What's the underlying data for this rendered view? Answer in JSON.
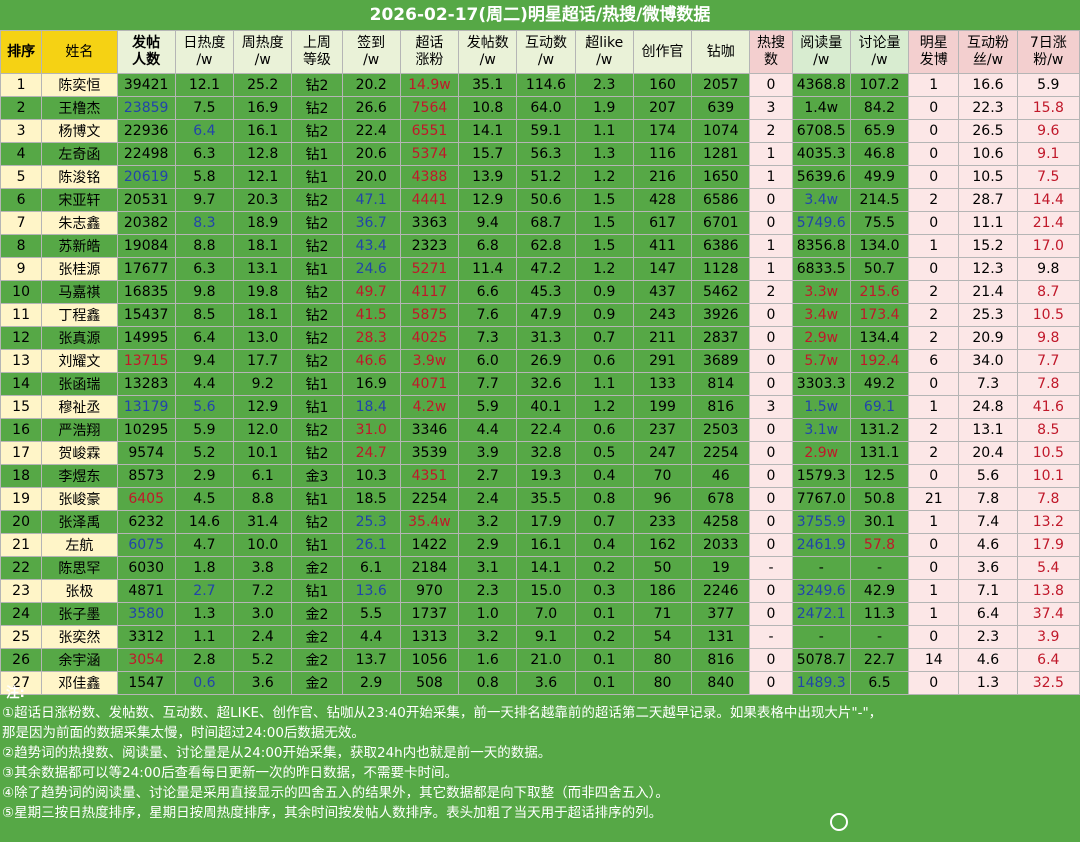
{
  "title": "2026-02-17(周二)明星超话/热搜/微博数据",
  "headers": [
    {
      "l1": "排序",
      "l2": "",
      "bold": true,
      "bg": "hy"
    },
    {
      "l1": "姓名",
      "l2": "",
      "bold": false,
      "bg": "hy"
    },
    {
      "l1": "发帖",
      "l2": "人数",
      "bold": true,
      "bg": "hl"
    },
    {
      "l1": "日热度",
      "l2": "/w",
      "bold": false,
      "bg": "hl"
    },
    {
      "l1": "周热度",
      "l2": "/w",
      "bold": false,
      "bg": "hl"
    },
    {
      "l1": "上周",
      "l2": "等级",
      "bold": false,
      "bg": "hl"
    },
    {
      "l1": "签到",
      "l2": "/w",
      "bold": false,
      "bg": "hl"
    },
    {
      "l1": "超话",
      "l2": "涨粉",
      "bold": false,
      "bg": "hl"
    },
    {
      "l1": "发帖数",
      "l2": "/w",
      "bold": false,
      "bg": "hl"
    },
    {
      "l1": "互动数",
      "l2": "/w",
      "bold": false,
      "bg": "hl"
    },
    {
      "l1": "超like",
      "l2": "/w",
      "bold": false,
      "bg": "hl"
    },
    {
      "l1": "创作官",
      "l2": "",
      "bold": false,
      "bg": "hl"
    },
    {
      "l1": "钻咖",
      "l2": "",
      "bold": false,
      "bg": "hl"
    },
    {
      "l1": "热搜",
      "l2": "数",
      "bold": false,
      "bg": "hp"
    },
    {
      "l1": "阅读量",
      "l2": "/w",
      "bold": false,
      "bg": "hg"
    },
    {
      "l1": "讨论量",
      "l2": "/w",
      "bold": false,
      "bg": "hg"
    },
    {
      "l1": "明星",
      "l2": "发博",
      "bold": false,
      "bg": "hp"
    },
    {
      "l1": "互动粉",
      "l2": "丝/w",
      "bold": false,
      "bg": "hp"
    },
    {
      "l1": "7日涨",
      "l2": "粉/w",
      "bold": false,
      "bg": "hp"
    }
  ],
  "rows": [
    [
      "1",
      "陈奕恒",
      "39421",
      "12.1",
      "25.2",
      "钻2",
      "20.2",
      "14.9w",
      "35.1",
      "114.6",
      "2.3",
      "160",
      "2057",
      "0",
      "4368.8",
      "107.2",
      "1",
      "16.6",
      "5.9"
    ],
    [
      "2",
      "王橹杰",
      "23859",
      "7.5",
      "16.9",
      "钻2",
      "26.6",
      "7564",
      "10.8",
      "64.0",
      "1.9",
      "207",
      "639",
      "3",
      "1.4w",
      "84.2",
      "0",
      "22.3",
      "15.8"
    ],
    [
      "3",
      "杨博文",
      "22936",
      "6.4",
      "16.1",
      "钻2",
      "22.4",
      "6551",
      "14.1",
      "59.1",
      "1.1",
      "174",
      "1074",
      "2",
      "6708.5",
      "65.9",
      "0",
      "26.5",
      "9.6"
    ],
    [
      "4",
      "左奇函",
      "22498",
      "6.3",
      "12.8",
      "钻1",
      "20.6",
      "5374",
      "15.7",
      "56.3",
      "1.3",
      "116",
      "1281",
      "1",
      "4035.3",
      "46.8",
      "0",
      "10.6",
      "9.1"
    ],
    [
      "5",
      "陈浚铭",
      "20619",
      "5.8",
      "12.1",
      "钻1",
      "20.0",
      "4388",
      "13.9",
      "51.2",
      "1.2",
      "216",
      "1650",
      "1",
      "5639.6",
      "49.9",
      "0",
      "10.5",
      "7.5"
    ],
    [
      "6",
      "宋亚轩",
      "20531",
      "9.7",
      "20.3",
      "钻2",
      "47.1",
      "4441",
      "12.9",
      "50.6",
      "1.5",
      "428",
      "6586",
      "0",
      "3.4w",
      "214.5",
      "2",
      "28.7",
      "14.4"
    ],
    [
      "7",
      "朱志鑫",
      "20382",
      "8.3",
      "18.9",
      "钻2",
      "36.7",
      "3363",
      "9.4",
      "68.7",
      "1.5",
      "617",
      "6701",
      "0",
      "5749.6",
      "75.5",
      "0",
      "11.1",
      "21.4"
    ],
    [
      "8",
      "苏新皓",
      "19084",
      "8.8",
      "18.1",
      "钻2",
      "43.4",
      "2323",
      "6.8",
      "62.8",
      "1.5",
      "411",
      "6386",
      "1",
      "8356.8",
      "134.0",
      "1",
      "15.2",
      "17.0"
    ],
    [
      "9",
      "张桂源",
      "17677",
      "6.3",
      "13.1",
      "钻1",
      "24.6",
      "5271",
      "11.4",
      "47.2",
      "1.2",
      "147",
      "1128",
      "1",
      "6833.5",
      "50.7",
      "0",
      "12.3",
      "9.8"
    ],
    [
      "10",
      "马嘉祺",
      "16835",
      "9.8",
      "19.8",
      "钻2",
      "49.7",
      "4117",
      "6.6",
      "45.3",
      "0.9",
      "437",
      "5462",
      "2",
      "3.3w",
      "215.6",
      "2",
      "21.4",
      "8.7"
    ],
    [
      "11",
      "丁程鑫",
      "15437",
      "8.5",
      "18.1",
      "钻2",
      "41.5",
      "5875",
      "7.6",
      "47.9",
      "0.9",
      "243",
      "3926",
      "0",
      "3.4w",
      "173.4",
      "2",
      "25.3",
      "10.5"
    ],
    [
      "12",
      "张真源",
      "14995",
      "6.4",
      "13.0",
      "钻2",
      "28.3",
      "4025",
      "7.3",
      "31.3",
      "0.7",
      "211",
      "2837",
      "0",
      "2.9w",
      "134.4",
      "2",
      "20.9",
      "9.8"
    ],
    [
      "13",
      "刘耀文",
      "13715",
      "9.4",
      "17.7",
      "钻2",
      "46.6",
      "3.9w",
      "6.0",
      "26.9",
      "0.6",
      "291",
      "3689",
      "0",
      "5.7w",
      "192.4",
      "6",
      "34.0",
      "7.7"
    ],
    [
      "14",
      "张函瑞",
      "13283",
      "4.4",
      "9.2",
      "钻1",
      "16.9",
      "4071",
      "7.7",
      "32.6",
      "1.1",
      "133",
      "814",
      "0",
      "3303.3",
      "49.2",
      "0",
      "7.3",
      "7.8"
    ],
    [
      "15",
      "穆祉丞",
      "13179",
      "5.6",
      "12.9",
      "钻1",
      "18.4",
      "4.2w",
      "5.9",
      "40.1",
      "1.2",
      "199",
      "816",
      "3",
      "1.5w",
      "69.1",
      "1",
      "24.8",
      "41.6"
    ],
    [
      "16",
      "严浩翔",
      "10295",
      "5.9",
      "12.0",
      "钻2",
      "31.0",
      "3346",
      "4.4",
      "22.4",
      "0.6",
      "237",
      "2503",
      "0",
      "3.1w",
      "131.2",
      "2",
      "13.1",
      "8.5"
    ],
    [
      "17",
      "贺峻霖",
      "9574",
      "5.2",
      "10.1",
      "钻2",
      "24.7",
      "3539",
      "3.9",
      "32.8",
      "0.5",
      "247",
      "2254",
      "0",
      "2.9w",
      "131.1",
      "2",
      "20.4",
      "10.5"
    ],
    [
      "18",
      "李煜东",
      "8573",
      "2.9",
      "6.1",
      "金3",
      "10.3",
      "4351",
      "2.7",
      "19.3",
      "0.4",
      "70",
      "46",
      "0",
      "1579.3",
      "12.5",
      "0",
      "5.6",
      "10.1"
    ],
    [
      "19",
      "张峻豪",
      "6405",
      "4.5",
      "8.8",
      "钻1",
      "18.5",
      "2254",
      "2.4",
      "35.5",
      "0.8",
      "96",
      "678",
      "0",
      "7767.0",
      "50.8",
      "21",
      "7.8",
      "7.8"
    ],
    [
      "20",
      "张泽禹",
      "6232",
      "14.6",
      "31.4",
      "钻2",
      "25.3",
      "35.4w",
      "3.2",
      "17.9",
      "0.7",
      "233",
      "4258",
      "0",
      "3755.9",
      "30.1",
      "1",
      "7.4",
      "13.2"
    ],
    [
      "21",
      "左航",
      "6075",
      "4.7",
      "10.0",
      "钻1",
      "26.1",
      "1422",
      "2.9",
      "16.1",
      "0.4",
      "162",
      "2033",
      "0",
      "2461.9",
      "57.8",
      "0",
      "4.6",
      "17.9"
    ],
    [
      "22",
      "陈思罕",
      "6030",
      "1.8",
      "3.8",
      "金2",
      "6.1",
      "2184",
      "3.1",
      "14.1",
      "0.2",
      "50",
      "19",
      "-",
      "-",
      "-",
      "0",
      "3.6",
      "5.4"
    ],
    [
      "23",
      "张极",
      "4871",
      "2.7",
      "7.2",
      "钻1",
      "13.6",
      "970",
      "2.3",
      "15.0",
      "0.3",
      "186",
      "2246",
      "0",
      "3249.6",
      "42.9",
      "1",
      "7.1",
      "13.8"
    ],
    [
      "24",
      "张子墨",
      "3580",
      "1.3",
      "3.0",
      "金2",
      "5.5",
      "1737",
      "1.0",
      "7.0",
      "0.1",
      "71",
      "377",
      "0",
      "2472.1",
      "11.3",
      "1",
      "6.4",
      "37.4"
    ],
    [
      "25",
      "张奕然",
      "3312",
      "1.1",
      "2.4",
      "金2",
      "4.4",
      "1313",
      "3.2",
      "9.1",
      "0.2",
      "54",
      "131",
      "-",
      "-",
      "-",
      "0",
      "2.3",
      "3.9"
    ],
    [
      "26",
      "余宇涵",
      "3054",
      "2.8",
      "5.2",
      "金2",
      "13.7",
      "1056",
      "1.6",
      "21.0",
      "0.1",
      "80",
      "816",
      "0",
      "5078.7",
      "22.7",
      "14",
      "4.6",
      "6.4"
    ],
    [
      "27",
      "邓佳鑫",
      "1547",
      "0.6",
      "3.6",
      "金2",
      "2.9",
      "508",
      "0.8",
      "3.6",
      "0.1",
      "80",
      "840",
      "0",
      "1489.3",
      "6.5",
      "0",
      "1.3",
      "32.5"
    ]
  ],
  "notes": {
    "title": "注:",
    "lines": [
      "①超话日涨粉数、发帖数、互动数、超LIKE、创作官、钻咖从23:40开始采集，前一天排名越靠前的超话第二天越早记录。如果表格中出现大片\"-\"，",
      "那是因为前面的数据采集太慢，时间超过24:00后数据无效。",
      "②趋势词的热搜数、阅读量、讨论量是从24:00开始采集，获取24h内也就是前一天的数据。",
      "③其余数据都可以等24:00后查看每日更新一次的昨日数据，不需要卡时间。",
      "④除了趋势词的阅读量、讨论量是采用直接显示的四舍五入的结果外，其它数据都是向下取整（而非四舍五入）。",
      "⑤星期三按日热度排序，星期日按周热度排序，其余时间按发帖人数排序。表头加粗了当天用于超话排序的列。"
    ]
  },
  "colors": {
    "background": "#56a846",
    "header_rank_name": "#f5d214",
    "header_weibo": "#eaf2d8",
    "header_trend": "#d8ecd0",
    "header_star": "#f3cfcf",
    "text_blue": "#2244aa",
    "text_red": "#c0182a"
  }
}
